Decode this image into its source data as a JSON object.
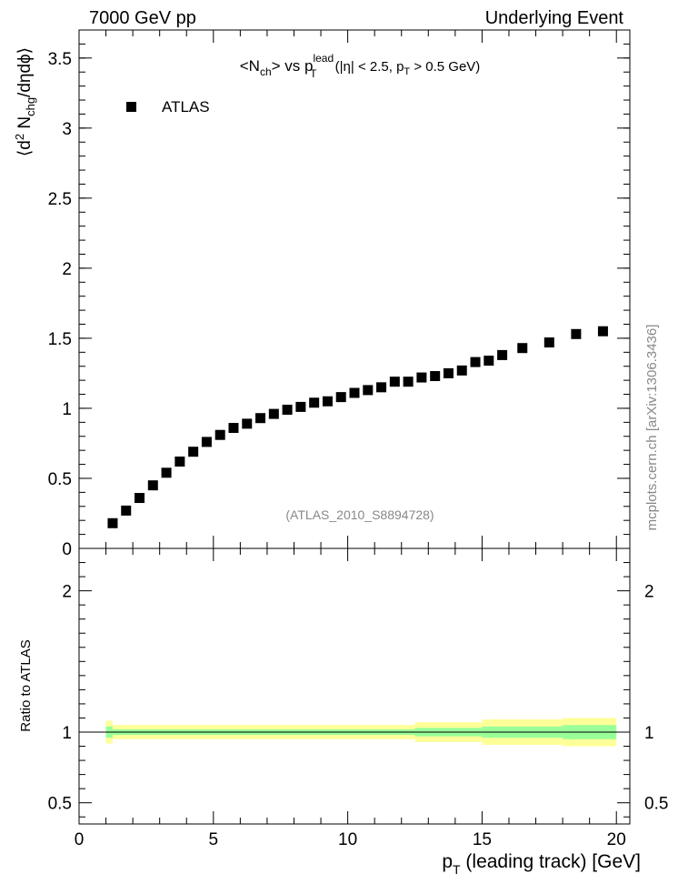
{
  "header": {
    "left": "7000 GeV pp",
    "right": "Underlying Event"
  },
  "side_label": "mcplots.cern.ch [arXiv:1306.3436]",
  "chart_data": [
    {
      "type": "scatter",
      "title_parts": {
        "a": "<N",
        "a_sub": "ch",
        "b": "> vs p",
        "b_sup": "lead",
        "b_sub": "T",
        "c": " (|η| < 2.5, p",
        "c_sub": "T",
        "d": " > 0.5 GeV)"
      },
      "ylabel_parts": {
        "a": "⟨d",
        "a_sup": "2",
        "b": " N",
        "b_sub": "chg",
        "c": "/dηdϕ⟩"
      },
      "watermark": "(ATLAS_2010_S8894728)",
      "xlim": [
        0,
        20.5
      ],
      "ylim": [
        0,
        3.7
      ],
      "yticks": [
        {
          "v": 0,
          "label": "0"
        },
        {
          "v": 0.5,
          "label": "0.5"
        },
        {
          "v": 1,
          "label": "1"
        },
        {
          "v": 1.5,
          "label": "1.5"
        },
        {
          "v": 2,
          "label": "2"
        },
        {
          "v": 2.5,
          "label": "2.5"
        },
        {
          "v": 3,
          "label": "3"
        },
        {
          "v": 3.5,
          "label": "3.5"
        }
      ],
      "legend": {
        "position": "top-left"
      },
      "series": [
        {
          "name": "ATLAS",
          "marker": "square",
          "color": "#000000",
          "x": [
            1.25,
            1.75,
            2.25,
            2.75,
            3.25,
            3.75,
            4.25,
            4.75,
            5.25,
            5.75,
            6.25,
            6.75,
            7.25,
            7.75,
            8.25,
            8.75,
            9.25,
            9.75,
            10.25,
            10.75,
            11.25,
            11.75,
            12.25,
            12.75,
            13.25,
            13.75,
            14.25,
            14.75,
            15.25,
            15.75,
            16.5,
            17.5,
            18.5,
            19.5
          ],
          "y": [
            0.18,
            0.27,
            0.36,
            0.45,
            0.54,
            0.62,
            0.69,
            0.76,
            0.81,
            0.86,
            0.89,
            0.93,
            0.96,
            0.99,
            1.01,
            1.04,
            1.05,
            1.08,
            1.11,
            1.13,
            1.15,
            1.19,
            1.19,
            1.22,
            1.23,
            1.25,
            1.27,
            1.33,
            1.34,
            1.38,
            1.43,
            1.47,
            1.53,
            1.55
          ]
        }
      ]
    },
    {
      "type": "area",
      "ylabel": "Ratio to ATLAS",
      "xlabel_parts": {
        "a": "p",
        "a_sub": "T",
        "b": " (leading track) [GeV]"
      },
      "xlim": [
        0,
        20.5
      ],
      "ylim": [
        0.35,
        2.3
      ],
      "xticks": [
        {
          "v": 0,
          "label": "0"
        },
        {
          "v": 5,
          "label": "5"
        },
        {
          "v": 10,
          "label": "10"
        },
        {
          "v": 15,
          "label": "15"
        },
        {
          "v": 20,
          "label": "20"
        }
      ],
      "yticks": [
        {
          "v": 0.5,
          "label": "0.5"
        },
        {
          "v": 1,
          "label": "1"
        },
        {
          "v": 2,
          "label": "2"
        }
      ],
      "reference_line": 1,
      "bands": {
        "colors": {
          "stat": "#99ff99",
          "total": "#ffff99"
        },
        "bins": [
          {
            "x0": 1.0,
            "x1": 1.25,
            "stat": 0.04,
            "total": 0.08
          },
          {
            "x0": 1.25,
            "x1": 12.5,
            "stat": 0.02,
            "total": 0.05
          },
          {
            "x0": 12.5,
            "x1": 15.0,
            "stat": 0.03,
            "total": 0.07
          },
          {
            "x0": 15.0,
            "x1": 18.0,
            "stat": 0.04,
            "total": 0.09
          },
          {
            "x0": 18.0,
            "x1": 20.0,
            "stat": 0.05,
            "total": 0.1
          }
        ]
      }
    }
  ]
}
